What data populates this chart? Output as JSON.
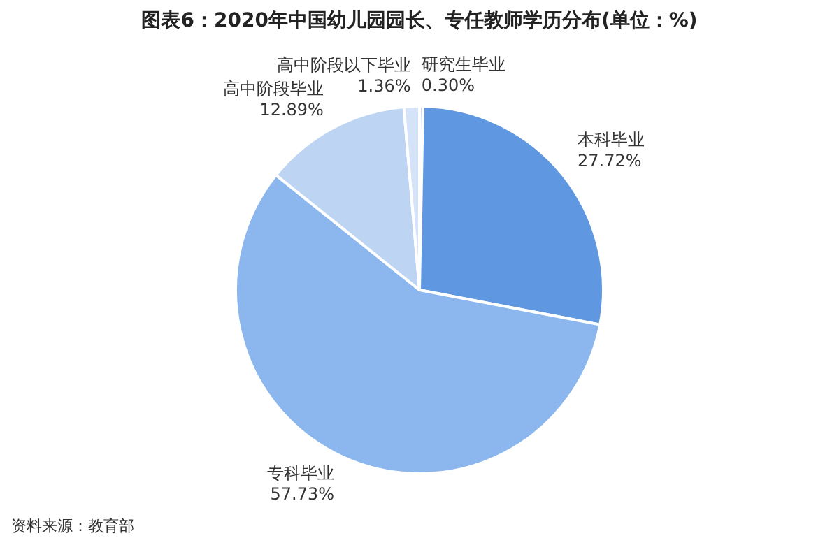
{
  "chart_data": {
    "type": "pie",
    "title": "图表6：2020年中国幼儿园园长、专任教师学历分布(单位：%)",
    "categories": [
      "研究生毕业",
      "本科毕业",
      "专科毕业",
      "高中阶段毕业",
      "高中阶段以下毕业"
    ],
    "values": [
      0.3,
      27.72,
      57.73,
      12.89,
      1.36
    ],
    "value_labels": [
      "0.30%",
      "27.72%",
      "57.73%",
      "12.89%",
      "1.36%"
    ],
    "colors": [
      "#a9c6ee",
      "#5f98e0",
      "#8cb6ee",
      "#bdd4f3",
      "#d4e3f7"
    ],
    "annotations": [
      "资料来源：教育部"
    ],
    "legend": false
  }
}
